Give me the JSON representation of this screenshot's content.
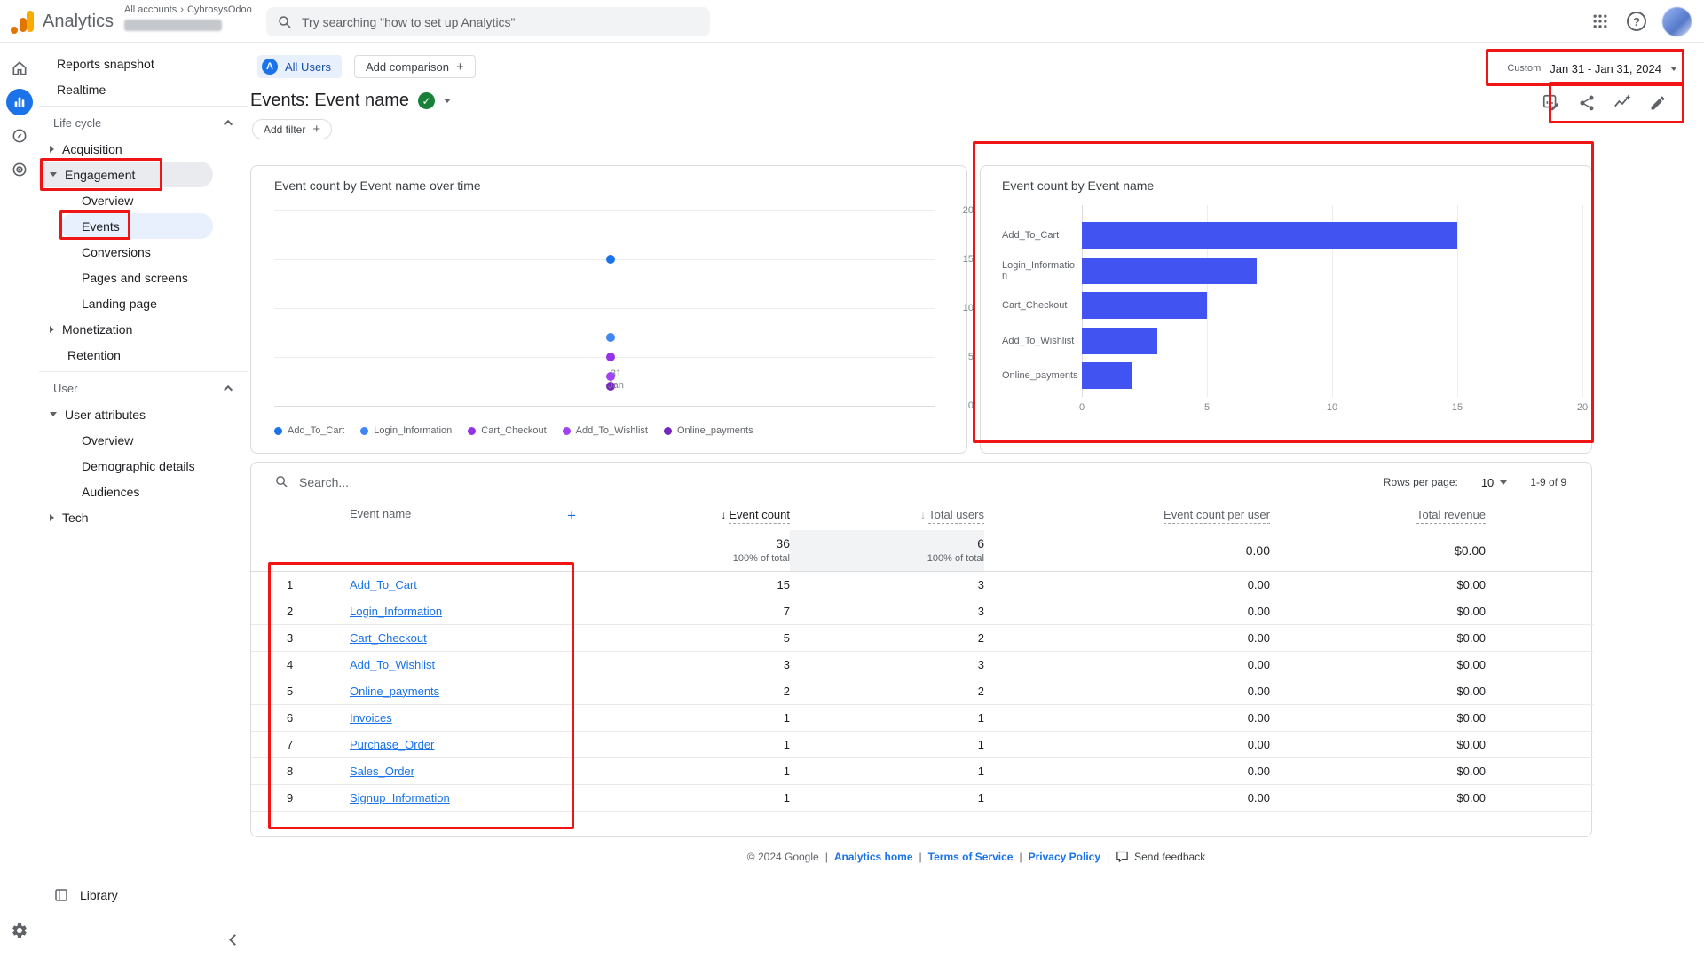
{
  "header": {
    "app_name": "Analytics",
    "breadcrumb": {
      "all_accounts": "All accounts",
      "account": "CybrosysOdoo"
    },
    "search_placeholder": "Try searching \"how to set up Analytics\""
  },
  "sidebar": {
    "reports_snapshot": "Reports snapshot",
    "realtime": "Realtime",
    "life_cycle_header": "Life cycle",
    "acquisition": "Acquisition",
    "engagement": "Engagement",
    "engagement_overview": "Overview",
    "events": "Events",
    "conversions": "Conversions",
    "pages_and_screens": "Pages and screens",
    "landing_page": "Landing page",
    "monetization": "Monetization",
    "retention": "Retention",
    "user_header": "User",
    "user_attributes": "User attributes",
    "user_overview": "Overview",
    "demographic_details": "Demographic details",
    "audiences": "Audiences",
    "tech": "Tech",
    "library": "Library"
  },
  "controls": {
    "audience_chip": "All Users",
    "audience_chip_letter": "A",
    "add_comparison": "Add comparison",
    "date_preset": "Custom",
    "date_range": "Jan 31 - Jan 31, 2024",
    "page_title": "Events: Event name",
    "add_filter": "Add filter"
  },
  "table": {
    "search_placeholder": "Search...",
    "rows_per_page_label": "Rows per page:",
    "rows_per_page_value": "10",
    "pagination": "1-9 of 9",
    "columns": {
      "event_name": "Event name",
      "event_count": "Event count",
      "total_users": "Total users",
      "event_count_per_user": "Event count per user",
      "total_revenue": "Total revenue"
    },
    "totals": {
      "event_count": "36",
      "event_count_pct": "100% of total",
      "total_users": "6",
      "total_users_pct": "100% of total",
      "event_count_per_user": "0.00",
      "total_revenue": "$0.00"
    },
    "rows": [
      {
        "n": "1",
        "name": "Add_To_Cart",
        "count": "15",
        "users": "3",
        "per_user": "0.00",
        "revenue": "$0.00"
      },
      {
        "n": "2",
        "name": "Login_Information",
        "count": "7",
        "users": "3",
        "per_user": "0.00",
        "revenue": "$0.00"
      },
      {
        "n": "3",
        "name": "Cart_Checkout",
        "count": "5",
        "users": "2",
        "per_user": "0.00",
        "revenue": "$0.00"
      },
      {
        "n": "4",
        "name": "Add_To_Wishlist",
        "count": "3",
        "users": "3",
        "per_user": "0.00",
        "revenue": "$0.00"
      },
      {
        "n": "5",
        "name": "Online_payments",
        "count": "2",
        "users": "2",
        "per_user": "0.00",
        "revenue": "$0.00"
      },
      {
        "n": "6",
        "name": "Invoices",
        "count": "1",
        "users": "1",
        "per_user": "0.00",
        "revenue": "$0.00"
      },
      {
        "n": "7",
        "name": "Purchase_Order",
        "count": "1",
        "users": "1",
        "per_user": "0.00",
        "revenue": "$0.00"
      },
      {
        "n": "8",
        "name": "Sales_Order",
        "count": "1",
        "users": "1",
        "per_user": "0.00",
        "revenue": "$0.00"
      },
      {
        "n": "9",
        "name": "Signup_Information",
        "count": "1",
        "users": "1",
        "per_user": "0.00",
        "revenue": "$0.00"
      }
    ]
  },
  "footer": {
    "copyright": "© 2024 Google",
    "links": [
      "Analytics home",
      "Terms of Service",
      "Privacy Policy"
    ],
    "send_feedback": "Send feedback"
  },
  "chart_data": [
    {
      "type": "scatter",
      "title": "Event count by Event name over time",
      "x_categories": [
        "Jan 31"
      ],
      "x_tick_lines": [
        "31",
        "Jan"
      ],
      "series": [
        {
          "name": "Add_To_Cart",
          "color": "#1a73e8",
          "values": [
            15
          ]
        },
        {
          "name": "Login_Information",
          "color": "#4285f4",
          "values": [
            7
          ]
        },
        {
          "name": "Cart_Checkout",
          "color": "#9334e6",
          "values": [
            5
          ]
        },
        {
          "name": "Add_To_Wishlist",
          "color": "#a142f4",
          "values": [
            3
          ]
        },
        {
          "name": "Online_payments",
          "color": "#7627bb",
          "values": [
            2
          ]
        }
      ],
      "ylim": [
        0,
        20
      ],
      "yticks": [
        0,
        5,
        10,
        15,
        20
      ],
      "grid": true,
      "legend_position": "bottom"
    },
    {
      "type": "bar",
      "orientation": "horizontal",
      "title": "Event count by Event name",
      "categories": [
        "Add_To_Cart",
        "Login_Information",
        "Cart_Checkout",
        "Add_To_Wishlist",
        "Online_payments"
      ],
      "values": [
        15,
        7,
        5,
        3,
        2
      ],
      "xlim": [
        0,
        20
      ],
      "xticks": [
        0,
        5,
        10,
        15,
        20
      ],
      "bar_color": "#4154f1",
      "xlabel": "",
      "ylabel": ""
    }
  ]
}
